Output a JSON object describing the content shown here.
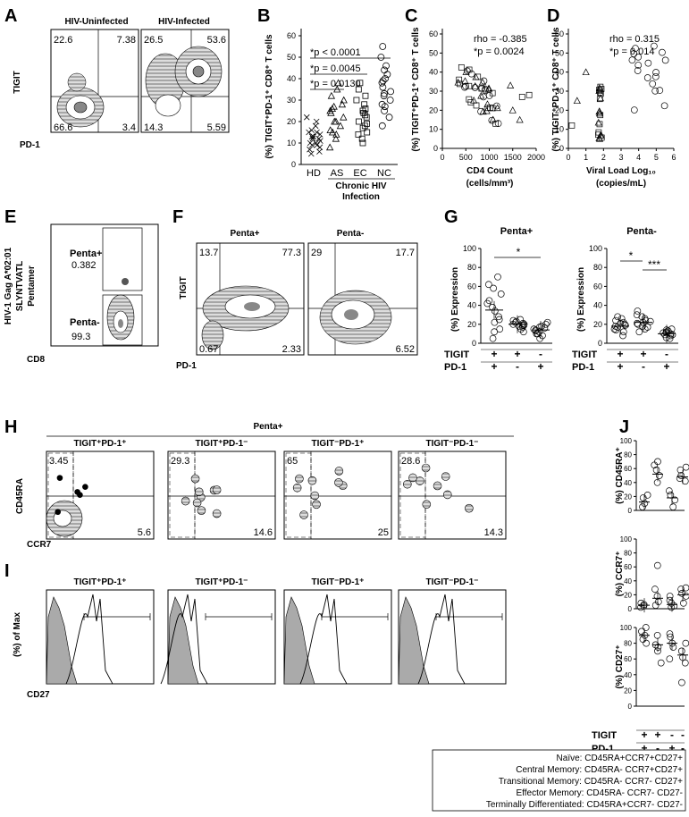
{
  "panel_letters": [
    "A",
    "B",
    "C",
    "D",
    "E",
    "F",
    "G",
    "H",
    "I",
    "J"
  ],
  "panelA": {
    "titles": [
      "HIV-Uninfected",
      "HIV-Infected"
    ],
    "ylabel": "TIGIT",
    "xlabel": "PD-1",
    "quad_uninfected": [
      "22.6",
      "7.38",
      "66.6",
      "3.4"
    ],
    "quad_infected": [
      "26.5",
      "53.6",
      "14.3",
      "5.59"
    ]
  },
  "panelB": {
    "ylabel": "(%) TIGIT⁺PD-1⁺ CD8⁺ T cells",
    "pvalues": [
      "*p < 0.0001",
      "*p = 0.0045",
      "*p = 0.0130"
    ],
    "categories": [
      "HD",
      "AS",
      "EC",
      "NC"
    ],
    "group_label": [
      "Chronic HIV",
      "Infection"
    ],
    "yticks": [
      "0",
      "10",
      "20",
      "30",
      "40",
      "50",
      "60"
    ],
    "chart_data": {
      "type": "scatter",
      "categories": [
        "HD",
        "AS",
        "EC",
        "NC"
      ],
      "ylim": [
        0,
        60
      ],
      "series": [
        {
          "name": "HD",
          "values": [
            5,
            7,
            8,
            9,
            10,
            10,
            11,
            12,
            13,
            13,
            14,
            15,
            16,
            18,
            20,
            22,
            6,
            9,
            12,
            15
          ]
        },
        {
          "name": "AS",
          "values": [
            8,
            12,
            14,
            16,
            18,
            20,
            22,
            24,
            25,
            26,
            28,
            30,
            32,
            35,
            38,
            15,
            20,
            27
          ]
        },
        {
          "name": "EC",
          "values": [
            10,
            12,
            15,
            17,
            18,
            20,
            22,
            24,
            25,
            26,
            28,
            30,
            32,
            35,
            38,
            14,
            19,
            23
          ]
        },
        {
          "name": "NC",
          "values": [
            18,
            22,
            25,
            28,
            30,
            32,
            34,
            36,
            38,
            40,
            42,
            44,
            46,
            50,
            55,
            27,
            33,
            39
          ]
        }
      ]
    }
  },
  "panelC": {
    "ylabel": "(%) TIGIT⁺PD-1⁺ CD8⁺ T cells",
    "xlabel": [
      "CD4 Count",
      "(cells/mm³)"
    ],
    "stat": [
      "rho = -0.385",
      "*p = 0.0024"
    ],
    "xticks": [
      "0",
      "500",
      "1000",
      "1500",
      "2000"
    ],
    "yticks": [
      "0",
      "10",
      "20",
      "30",
      "40",
      "50",
      "60"
    ]
  },
  "panelD": {
    "ylabel": "(%) TIGIT⁺PD-1⁺ CD8⁺ T cells",
    "xlabel": [
      "Viral Load Log₁₀",
      "(copies/mL)"
    ],
    "stat": [
      "rho = 0.315",
      "*p = 0.014"
    ],
    "xticks": [
      "0",
      "1",
      "2",
      "3",
      "4",
      "5",
      "6"
    ],
    "yticks": [
      "0",
      "10",
      "20",
      "30",
      "40",
      "50",
      "60"
    ]
  },
  "panelE": {
    "ylabel": [
      "HIV-1 Gag A*02:01",
      "SLYNTVATL",
      "Pentamer"
    ],
    "xlabel": "CD8",
    "gates": [
      {
        "name": "Penta+",
        "value": "0.382"
      },
      {
        "name": "Penta-",
        "value": "99.3"
      }
    ]
  },
  "panelF": {
    "titles": [
      "Penta+",
      "Penta-"
    ],
    "ylabel": "TIGIT",
    "xlabel": "PD-1",
    "quad_pos": [
      "13.7",
      "77.3",
      "0.67",
      "2.33"
    ],
    "quad_neg": [
      "29",
      "17.7",
      "",
      "6.52"
    ]
  },
  "panelG": {
    "titles": [
      "Penta+",
      "Penta-"
    ],
    "ylabel": "(%) Expression",
    "row_labels": [
      "TIGIT",
      "PD-1"
    ],
    "signs_tigit": [
      "+",
      "+",
      "-"
    ],
    "signs_pd1": [
      "+",
      "-",
      "+"
    ],
    "stars_pos": [
      "*"
    ],
    "stars_neg": [
      "*",
      "***"
    ],
    "yticks": [
      "0",
      "20",
      "40",
      "60",
      "80",
      "100"
    ],
    "chart_data": [
      {
        "type": "scatter",
        "title": "Penta+",
        "categories": [
          "TIGIT+PD-1+",
          "TIGIT+PD-1-",
          "TIGIT-PD-1+"
        ],
        "ylim": [
          0,
          100
        ],
        "series": [
          {
            "values": [
              5,
              15,
              22,
              28,
              34,
              38,
              42,
              45,
              52,
              58,
              62,
              70,
              12,
              25
            ]
          },
          {
            "values": [
              12,
              15,
              17,
              18,
              19,
              20,
              21,
              22,
              23,
              24,
              25,
              19,
              20
            ]
          },
          {
            "values": [
              5,
              8,
              10,
              12,
              14,
              15,
              16,
              18,
              20,
              22,
              10,
              13,
              17
            ]
          }
        ],
        "means": [
          35,
          20,
          14
        ]
      },
      {
        "type": "scatter",
        "title": "Penta-",
        "categories": [
          "TIGIT+PD-1+",
          "TIGIT+PD-1-",
          "TIGIT-PD-1+"
        ],
        "ylim": [
          0,
          100
        ],
        "series": [
          {
            "values": [
              8,
              12,
              15,
              17,
              18,
              20,
              22,
              24,
              26,
              28,
              14,
              19,
              21
            ]
          },
          {
            "values": [
              12,
              15,
              18,
              20,
              22,
              24,
              26,
              28,
              30,
              34,
              17,
              21,
              23
            ]
          },
          {
            "values": [
              5,
              6,
              8,
              9,
              10,
              11,
              12,
              13,
              14,
              15,
              9,
              11
            ]
          }
        ],
        "means": [
          18,
          22,
          10
        ]
      }
    ]
  },
  "panelH": {
    "header": "Penta+",
    "titles": [
      "TIGIT⁺PD-1⁺",
      "TIGIT⁺PD-1⁻",
      "TIGIT⁻PD-1⁺",
      "TIGIT⁻PD-1⁻"
    ],
    "ylabel": "CD45RA",
    "xlabel": "CCR7",
    "top_left": [
      "3.45",
      "29.3",
      "65",
      "28.6"
    ],
    "bottom_right": [
      "5.6",
      "14.6",
      "25",
      "14.3"
    ]
  },
  "panelI": {
    "titles": [
      "TIGIT⁺PD-1⁺",
      "TIGIT⁺PD-1⁻",
      "TIGIT⁻PD-1⁺",
      "TIGIT⁻PD-1⁻"
    ],
    "ylabel": "(%) of Max",
    "xlabel": "CD27"
  },
  "panelJ": {
    "ylabels": [
      "(%) CD45RA⁺",
      "(%) CCR7⁺",
      "(%) CD27⁺"
    ],
    "yticks": [
      "0",
      "20",
      "40",
      "60",
      "80",
      "100"
    ],
    "row_labels": [
      "TIGIT",
      "PD-1"
    ],
    "signs_tigit": [
      "+",
      "+",
      "-",
      "-"
    ],
    "signs_pd1": [
      "+",
      "-",
      "+",
      "-"
    ],
    "chart_data": [
      {
        "type": "scatter",
        "ylabel": "(%) CD45RA⁺",
        "ylim": [
          0,
          100
        ],
        "series": [
          {
            "values": [
              5,
              10,
              18,
              22
            ]
          },
          {
            "values": [
              40,
              50,
              58,
              65,
              70
            ]
          },
          {
            "values": [
              5,
              15,
              22,
              28
            ]
          },
          {
            "values": [
              42,
              46,
              50,
              58,
              62
            ]
          }
        ],
        "means": [
          12,
          52,
          18,
          48
        ]
      },
      {
        "type": "scatter",
        "ylabel": "(%) CCR7⁺",
        "ylim": [
          0,
          100
        ],
        "series": [
          {
            "values": [
              2,
              4,
              6,
              8
            ]
          },
          {
            "values": [
              5,
              10,
              18,
              28,
              62
            ]
          },
          {
            "values": [
              2,
              4,
              8,
              12,
              18
            ]
          },
          {
            "values": [
              8,
              18,
              22,
              28,
              30
            ]
          }
        ],
        "means": [
          5,
          15,
          6,
          20
        ]
      },
      {
        "type": "scatter",
        "ylabel": "(%) CD27⁺",
        "ylim": [
          0,
          100
        ],
        "series": [
          {
            "values": [
              80,
              85,
              90,
              95,
              100
            ]
          },
          {
            "values": [
              55,
              70,
              75,
              78,
              90
            ]
          },
          {
            "values": [
              60,
              75,
              80,
              88,
              92
            ]
          },
          {
            "values": [
              30,
              55,
              62,
              70,
              80
            ]
          }
        ],
        "means": [
          90,
          78,
          80,
          65
        ]
      }
    ]
  },
  "legend": [
    "Naïve: CD45RA+CCR7+CD27+",
    "Central Memory: CD45RA- CCR7+CD27+",
    "Transitional Memory: CD45RA- CCR7- CD27+",
    "Effector Memory: CD45RA- CCR7- CD27-",
    "Terminally Differentiated: CD45RA+CCR7- CD27-"
  ]
}
